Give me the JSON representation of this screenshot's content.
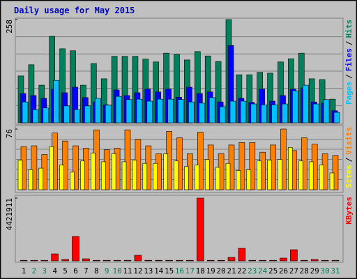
{
  "title": "Daily usage for May 2015",
  "legend_separator": "/",
  "category_colors": [
    "#000000",
    "#00805c",
    "#00805c",
    "#000000",
    "#000000",
    "#000000",
    "#000000",
    "#000000",
    "#00805c",
    "#00805c",
    "#000000",
    "#000000",
    "#000000",
    "#000000",
    "#000000",
    "#00805c",
    "#00805c",
    "#000000",
    "#000000",
    "#000000",
    "#000000",
    "#000000",
    "#00805c",
    "#00805c",
    "#000000",
    "#000000",
    "#000000",
    "#000000",
    "#000000",
    "#00805c",
    "#00805c"
  ],
  "chart_data": [
    {
      "type": "bar",
      "ylim": [
        0,
        258
      ],
      "yticks": [
        258
      ],
      "grid": true,
      "categories": [
        "1",
        "2",
        "3",
        "4",
        "5",
        "6",
        "7",
        "8",
        "9",
        "10",
        "11",
        "12",
        "13",
        "14",
        "15",
        "16",
        "17",
        "18",
        "19",
        "20",
        "21",
        "22",
        "23",
        "24",
        "25",
        "26",
        "27",
        "28",
        "29",
        "30",
        "31"
      ],
      "series": [
        {
          "name": "Hits",
          "color": "#00805c",
          "values": [
            117,
            145,
            94,
            216,
            185,
            180,
            94,
            148,
            110,
            166,
            166,
            166,
            159,
            152,
            174,
            171,
            157,
            178,
            167,
            153,
            258,
            120,
            120,
            126,
            124,
            152,
            160,
            174,
            110,
            108,
            59
          ]
        },
        {
          "name": "Files",
          "color": "#0000ff",
          "values": [
            73,
            68,
            61,
            84,
            75,
            89,
            63,
            52,
            45,
            82,
            68,
            75,
            84,
            77,
            84,
            64,
            89,
            73,
            77,
            52,
            193,
            61,
            51,
            84,
            54,
            68,
            84,
            87,
            52,
            49,
            30
          ]
        },
        {
          "name": "Pages",
          "color": "#00c0ff",
          "values": [
            52,
            33,
            37,
            106,
            42,
            33,
            42,
            61,
            44,
            66,
            58,
            59,
            54,
            59,
            59,
            58,
            52,
            49,
            63,
            40,
            54,
            54,
            47,
            45,
            45,
            47,
            80,
            94,
            47,
            58,
            26
          ]
        }
      ]
    },
    {
      "type": "bar",
      "ylim": [
        0,
        76
      ],
      "yticks": [
        76
      ],
      "grid": true,
      "series": [
        {
          "name": "Visits",
          "color": "#ff8000",
          "values": [
            54,
            55,
            44,
            71,
            61,
            55,
            52,
            75,
            50,
            52,
            75,
            63,
            55,
            45,
            73,
            65,
            45,
            72,
            56,
            45,
            56,
            59,
            59,
            47,
            56,
            76,
            49,
            65,
            57,
            45,
            43
          ]
        },
        {
          "name": "Sites",
          "color": "#ffff00",
          "values": [
            37,
            25,
            27,
            54,
            31,
            22,
            36,
            46,
            35,
            45,
            35,
            37,
            33,
            33,
            45,
            36,
            29,
            31,
            38,
            28,
            33,
            24,
            25,
            36,
            37,
            38,
            53,
            36,
            35,
            31,
            21
          ]
        }
      ]
    },
    {
      "type": "bar",
      "ylim": [
        0,
        4421911
      ],
      "yticks": [
        4421911
      ],
      "grid": false,
      "series": [
        {
          "name": "KBytes",
          "color": "#ff0000",
          "values": [
            40000,
            40000,
            40000,
            491000,
            100000,
            1720000,
            147000,
            40000,
            40000,
            40000,
            40000,
            393000,
            40000,
            40000,
            40000,
            40000,
            40000,
            4421911,
            40000,
            40000,
            246000,
            884000,
            40000,
            40000,
            40000,
            196000,
            786000,
            40000,
            98000,
            40000,
            40000
          ]
        }
      ]
    }
  ]
}
